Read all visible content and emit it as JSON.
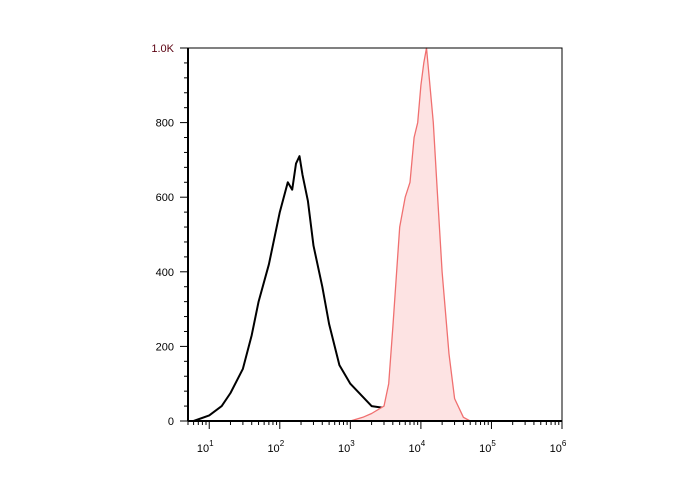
{
  "chart_data": {
    "type": "area",
    "title": "",
    "xlabel": "",
    "ylabel": "",
    "x_scale": "log",
    "xlim": [
      5,
      1000000
    ],
    "ylim": [
      0,
      1000
    ],
    "grid": false,
    "x_ticks": [
      {
        "value": 10,
        "base": "10",
        "exp": "1"
      },
      {
        "value": 100,
        "base": "10",
        "exp": "2"
      },
      {
        "value": 1000,
        "base": "10",
        "exp": "3"
      },
      {
        "value": 10000,
        "base": "10",
        "exp": "4"
      },
      {
        "value": 100000,
        "base": "10",
        "exp": "5"
      },
      {
        "value": 1000000,
        "base": "10",
        "exp": "6"
      }
    ],
    "y_ticks": [
      {
        "value": 0,
        "label": "0"
      },
      {
        "value": 200,
        "label": "200"
      },
      {
        "value": 400,
        "label": "400"
      },
      {
        "value": 600,
        "label": "600"
      },
      {
        "value": 800,
        "label": "800"
      },
      {
        "value": 1000,
        "label": "1.0K"
      }
    ],
    "series": [
      {
        "color": "#000000",
        "fill": "none",
        "points": [
          [
            6,
            0
          ],
          [
            10,
            15
          ],
          [
            15,
            40
          ],
          [
            20,
            75
          ],
          [
            30,
            140
          ],
          [
            40,
            230
          ],
          [
            50,
            320
          ],
          [
            70,
            420
          ],
          [
            100,
            560
          ],
          [
            130,
            640
          ],
          [
            150,
            620
          ],
          [
            170,
            690
          ],
          [
            190,
            710
          ],
          [
            210,
            660
          ],
          [
            250,
            590
          ],
          [
            300,
            470
          ],
          [
            400,
            360
          ],
          [
            500,
            260
          ],
          [
            700,
            150
          ],
          [
            1000,
            100
          ],
          [
            1500,
            65
          ],
          [
            2000,
            40
          ],
          [
            3000,
            35
          ],
          [
            5000,
            20
          ],
          [
            8000,
            5
          ],
          [
            10000,
            0
          ]
        ]
      },
      {
        "color": "#f07070",
        "fill": "#fde3e3",
        "points": [
          [
            1000,
            0
          ],
          [
            1500,
            10
          ],
          [
            2000,
            20
          ],
          [
            3000,
            40
          ],
          [
            3500,
            100
          ],
          [
            4000,
            250
          ],
          [
            5000,
            520
          ],
          [
            6000,
            600
          ],
          [
            7000,
            640
          ],
          [
            8000,
            760
          ],
          [
            9000,
            800
          ],
          [
            10000,
            900
          ],
          [
            11000,
            960
          ],
          [
            12000,
            1000
          ],
          [
            13000,
            930
          ],
          [
            15000,
            800
          ],
          [
            17000,
            620
          ],
          [
            20000,
            400
          ],
          [
            25000,
            180
          ],
          [
            30000,
            60
          ],
          [
            40000,
            10
          ],
          [
            50000,
            0
          ]
        ]
      }
    ]
  }
}
